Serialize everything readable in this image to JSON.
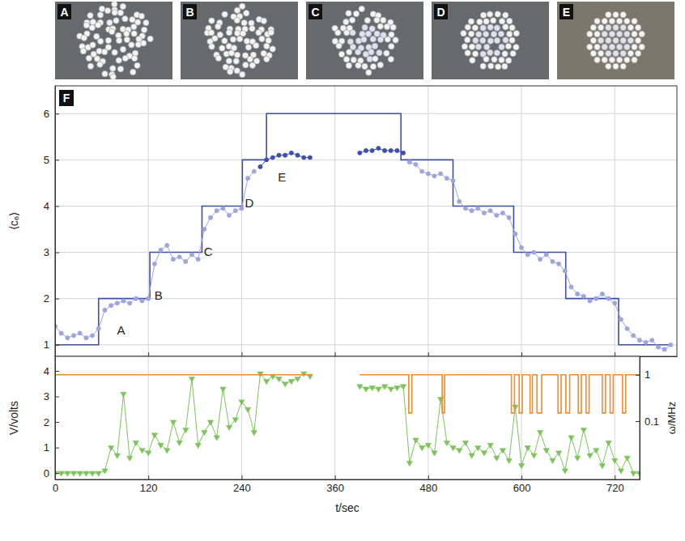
{
  "panels": {
    "labels": [
      "A",
      "B",
      "C",
      "D",
      "E"
    ]
  },
  "chart_data": [
    {
      "type": "line",
      "label": "F",
      "ylabel": "⟨c₆⟩",
      "xlim": [
        0,
        800
      ],
      "xticks": [
        0,
        120,
        240,
        360,
        480,
        600,
        720
      ],
      "ylim": [
        0.75,
        6.6
      ],
      "yticks": [
        1,
        2,
        3,
        4,
        5,
        6
      ],
      "grid": true,
      "tick_labels": "y",
      "annotations": [
        {
          "text": "A",
          "x": 85,
          "y": 1.3
        },
        {
          "text": "B",
          "x": 133,
          "y": 2.05
        },
        {
          "text": "C",
          "x": 197,
          "y": 3.0
        },
        {
          "text": "D",
          "x": 250,
          "y": 4.05
        },
        {
          "text": "E",
          "x": 292,
          "y": 4.6
        }
      ],
      "series": [
        {
          "color": "#3f4fa3",
          "marker": "none",
          "line_style": "solid",
          "x": [
            0,
            56,
            56,
            122,
            122,
            189,
            189,
            241,
            241,
            272,
            272,
            445,
            445,
            512,
            512,
            590,
            590,
            657,
            657,
            725,
            725,
            792
          ],
          "values": [
            1,
            1,
            2,
            2,
            3,
            3,
            4,
            4,
            5,
            5,
            6,
            6,
            5,
            5,
            4,
            4,
            3,
            3,
            2,
            2,
            1,
            1
          ]
        },
        {
          "color": "#9ea4dc",
          "marker": "circle",
          "line_style": "solid",
          "x": [
            0,
            8,
            16,
            24,
            32,
            40,
            48,
            56,
            64,
            72,
            80,
            88,
            96,
            104,
            112,
            120,
            128,
            136,
            144,
            152,
            160,
            168,
            176,
            184,
            192,
            200,
            208,
            216,
            224,
            232,
            240,
            248,
            256,
            360,
            456,
            464,
            472,
            480,
            488,
            496,
            504,
            512,
            520,
            528,
            536,
            544,
            552,
            560,
            568,
            576,
            584,
            592,
            600,
            608,
            616,
            624,
            632,
            640,
            648,
            656,
            664,
            672,
            680,
            688,
            696,
            704,
            712,
            720,
            728,
            736,
            744,
            752,
            760,
            768,
            776,
            784,
            792
          ],
          "values": [
            1.4,
            1.25,
            1.15,
            1.2,
            1.25,
            1.15,
            1.2,
            1.35,
            1.75,
            1.85,
            1.9,
            1.95,
            1.9,
            2.0,
            1.95,
            2.0,
            2.75,
            3.05,
            3.15,
            2.85,
            2.9,
            2.8,
            2.95,
            2.85,
            3.5,
            3.75,
            3.9,
            3.95,
            3.8,
            3.9,
            3.95,
            4.6,
            4.75,
            null,
            4.95,
            4.9,
            4.75,
            4.7,
            4.65,
            4.7,
            4.6,
            4.55,
            4.1,
            3.95,
            3.9,
            3.95,
            3.85,
            3.9,
            3.8,
            3.85,
            3.75,
            3.4,
            3.1,
            2.95,
            3.0,
            2.85,
            2.95,
            2.8,
            2.75,
            2.6,
            2.25,
            2.1,
            2.05,
            1.95,
            2.0,
            2.1,
            2.0,
            1.9,
            1.55,
            1.35,
            1.2,
            1.1,
            1.05,
            1.1,
            0.95,
            0.9,
            1.0
          ]
        },
        {
          "color": "#3b4fb0",
          "marker": "circle",
          "line_style": "solid",
          "x": [
            264,
            272,
            280,
            288,
            296,
            304,
            312,
            320,
            328,
            360,
            392,
            400,
            408,
            416,
            424,
            432,
            440,
            448
          ],
          "values": [
            4.85,
            5.0,
            5.05,
            5.1,
            5.1,
            5.15,
            5.1,
            5.05,
            5.05,
            null,
            5.15,
            5.2,
            5.2,
            5.25,
            5.2,
            5.2,
            5.2,
            5.15
          ]
        }
      ]
    },
    {
      "type": "line",
      "xlabel": "t/sec",
      "ylabel": "V/volts",
      "y2label": "ω/MHz",
      "xlim": [
        0,
        752
      ],
      "xticks": [
        0,
        120,
        240,
        360,
        480,
        600,
        720
      ],
      "ylim": [
        -0.25,
        4.57
      ],
      "yticks": [
        0,
        1,
        2,
        3,
        4
      ],
      "y2lim": [
        0.0055,
        2.5
      ],
      "y2ticks": [
        0.1,
        1
      ],
      "log": "y2",
      "grid": "x",
      "series": [
        {
          "color": "#7cc35b",
          "marker": "triangle",
          "line_style": "solid",
          "x": [
            0,
            8,
            16,
            24,
            32,
            40,
            48,
            56,
            64,
            72,
            80,
            88,
            96,
            104,
            112,
            120,
            128,
            136,
            144,
            152,
            160,
            168,
            176,
            184,
            192,
            200,
            208,
            216,
            224,
            232,
            240,
            248,
            256,
            264,
            272,
            280,
            288,
            296,
            304,
            312,
            320,
            328,
            360,
            392,
            400,
            408,
            416,
            424,
            432,
            440,
            448,
            456,
            464,
            472,
            480,
            488,
            496,
            504,
            512,
            520,
            528,
            536,
            544,
            552,
            560,
            568,
            576,
            584,
            592,
            600,
            608,
            616,
            624,
            632,
            640,
            648,
            656,
            664,
            672,
            680,
            688,
            696,
            704,
            712,
            720,
            728,
            736,
            744,
            752
          ],
          "values": [
            0,
            0,
            0,
            0,
            0,
            0,
            0,
            0,
            0.1,
            1.0,
            0.7,
            3.1,
            0.6,
            1.2,
            0.9,
            0.8,
            1.5,
            1.1,
            0.9,
            2.0,
            1.2,
            1.7,
            3.7,
            1.1,
            1.6,
            2.0,
            1.4,
            3.3,
            1.8,
            2.1,
            2.8,
            2.5,
            1.6,
            3.9,
            3.6,
            3.8,
            3.7,
            3.5,
            3.6,
            3.7,
            3.9,
            3.8,
            null,
            3.4,
            3.3,
            3.35,
            3.3,
            3.4,
            3.3,
            3.35,
            3.4,
            0.4,
            1.3,
            1.0,
            1.1,
            0.8,
            2.9,
            1.2,
            1.0,
            0.9,
            1.2,
            0.7,
            1.0,
            0.8,
            1.1,
            0.6,
            0.9,
            0.5,
            2.6,
            0.3,
            1.0,
            0.7,
            1.6,
            0.9,
            0.5,
            0.8,
            0.1,
            1.4,
            0.6,
            1.7,
            0.7,
            0.9,
            0.3,
            1.2,
            0.5,
            0.1,
            0.6,
            0,
            0
          ]
        },
        {
          "color": "#f28a2e",
          "marker": "none",
          "line_style": "solid",
          "axis": "y2",
          "x": [
            0,
            330,
            360,
            392,
            455,
            455,
            459,
            459,
            498,
            498,
            501,
            501,
            587,
            587,
            591,
            591,
            597,
            597,
            601,
            601,
            611,
            611,
            614,
            614,
            620,
            620,
            626,
            626,
            647,
            647,
            651,
            651,
            657,
            657,
            662,
            662,
            673,
            673,
            677,
            677,
            683,
            683,
            687,
            687,
            704,
            704,
            708,
            708,
            714,
            714,
            718,
            718,
            730,
            730,
            734,
            734,
            752
          ],
          "values": [
            1,
            1,
            null,
            1,
            1,
            0.15,
            0.15,
            1,
            1,
            0.15,
            0.15,
            1,
            1,
            0.15,
            0.15,
            1,
            1,
            0.15,
            0.15,
            1,
            1,
            0.15,
            0.15,
            1,
            1,
            0.15,
            0.15,
            1,
            1,
            0.15,
            0.15,
            1,
            1,
            0.15,
            0.15,
            1,
            1,
            0.15,
            0.15,
            1,
            1,
            0.15,
            0.15,
            1,
            1,
            0.15,
            0.15,
            1,
            1,
            0.15,
            0.15,
            1,
            1,
            0.15,
            0.15,
            1,
            1
          ]
        }
      ]
    }
  ]
}
